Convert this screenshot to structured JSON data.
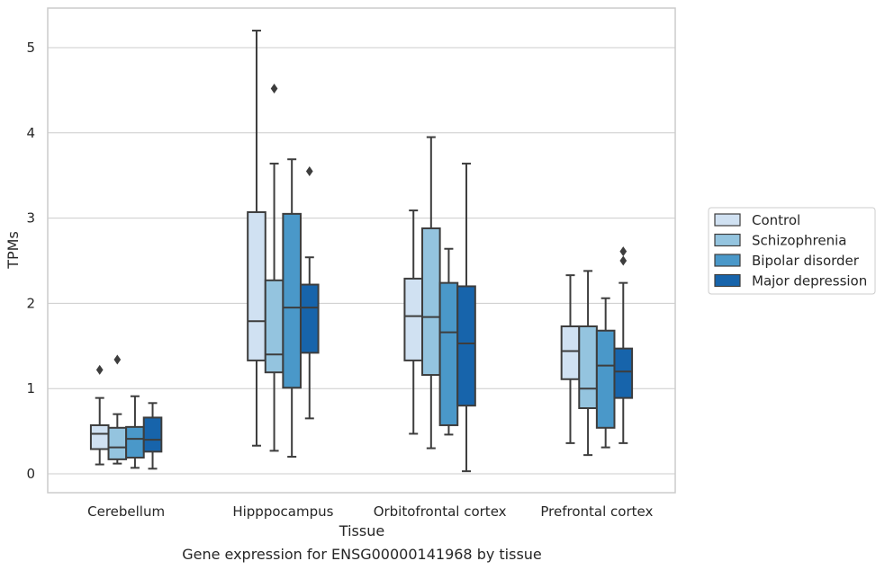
{
  "chart_data": {
    "type": "box",
    "title": "",
    "caption": "Gene expression for ENSG00000141968 by tissue",
    "xlabel": "Tissue",
    "ylabel": "TPMs",
    "ylim": [
      -0.22,
      5.45
    ],
    "yticks": [
      0,
      1,
      2,
      3,
      4,
      5
    ],
    "grid": true,
    "legend_position": "right",
    "categories": [
      "Cerebellum",
      "Hipppocampus",
      "Orbitofrontal cortex",
      "Prefrontal cortex"
    ],
    "series": [
      {
        "name": "Control",
        "color": "#d0e1f2",
        "boxes": [
          {
            "whislo": 0.11,
            "q1": 0.29,
            "med": 0.47,
            "q3": 0.57,
            "whishi": 0.89,
            "fliers": [
              1.22
            ]
          },
          {
            "whislo": 0.33,
            "q1": 1.33,
            "med": 1.79,
            "q3": 3.07,
            "whishi": 5.2,
            "fliers": []
          },
          {
            "whislo": 0.47,
            "q1": 1.33,
            "med": 1.85,
            "q3": 2.29,
            "whishi": 3.09,
            "fliers": []
          },
          {
            "whislo": 0.36,
            "q1": 1.11,
            "med": 1.44,
            "q3": 1.73,
            "whishi": 2.33,
            "fliers": []
          }
        ]
      },
      {
        "name": "Schizophrenia",
        "color": "#94c4df",
        "boxes": [
          {
            "whislo": 0.12,
            "q1": 0.17,
            "med": 0.31,
            "q3": 0.54,
            "whishi": 0.7,
            "fliers": [
              1.34
            ]
          },
          {
            "whislo": 0.27,
            "q1": 1.19,
            "med": 1.4,
            "q3": 2.27,
            "whishi": 3.64,
            "fliers": [
              4.52
            ]
          },
          {
            "whislo": 0.3,
            "q1": 1.16,
            "med": 1.84,
            "q3": 2.88,
            "whishi": 3.95,
            "fliers": []
          },
          {
            "whislo": 0.22,
            "q1": 0.77,
            "med": 1.0,
            "q3": 1.73,
            "whishi": 2.38,
            "fliers": []
          }
        ]
      },
      {
        "name": "Bipolar disorder",
        "color": "#4a98c9",
        "boxes": [
          {
            "whislo": 0.07,
            "q1": 0.19,
            "med": 0.41,
            "q3": 0.55,
            "whishi": 0.91,
            "fliers": []
          },
          {
            "whislo": 0.2,
            "q1": 1.01,
            "med": 1.95,
            "q3": 3.05,
            "whishi": 3.69,
            "fliers": []
          },
          {
            "whislo": 0.46,
            "q1": 0.57,
            "med": 1.66,
            "q3": 2.24,
            "whishi": 2.64,
            "fliers": []
          },
          {
            "whislo": 0.31,
            "q1": 0.54,
            "med": 1.27,
            "q3": 1.68,
            "whishi": 2.06,
            "fliers": []
          }
        ]
      },
      {
        "name": "Major depression",
        "color": "#1764ab",
        "boxes": [
          {
            "whislo": 0.06,
            "q1": 0.26,
            "med": 0.4,
            "q3": 0.66,
            "whishi": 0.83,
            "fliers": []
          },
          {
            "whislo": 0.65,
            "q1": 1.42,
            "med": 1.95,
            "q3": 2.22,
            "whishi": 2.54,
            "fliers": [
              3.55
            ]
          },
          {
            "whislo": 0.03,
            "q1": 0.8,
            "med": 1.53,
            "q3": 2.2,
            "whishi": 3.64,
            "fliers": []
          },
          {
            "whislo": 0.36,
            "q1": 0.89,
            "med": 1.2,
            "q3": 1.47,
            "whishi": 2.24,
            "fliers": [
              2.5,
              2.61
            ]
          }
        ]
      }
    ]
  }
}
